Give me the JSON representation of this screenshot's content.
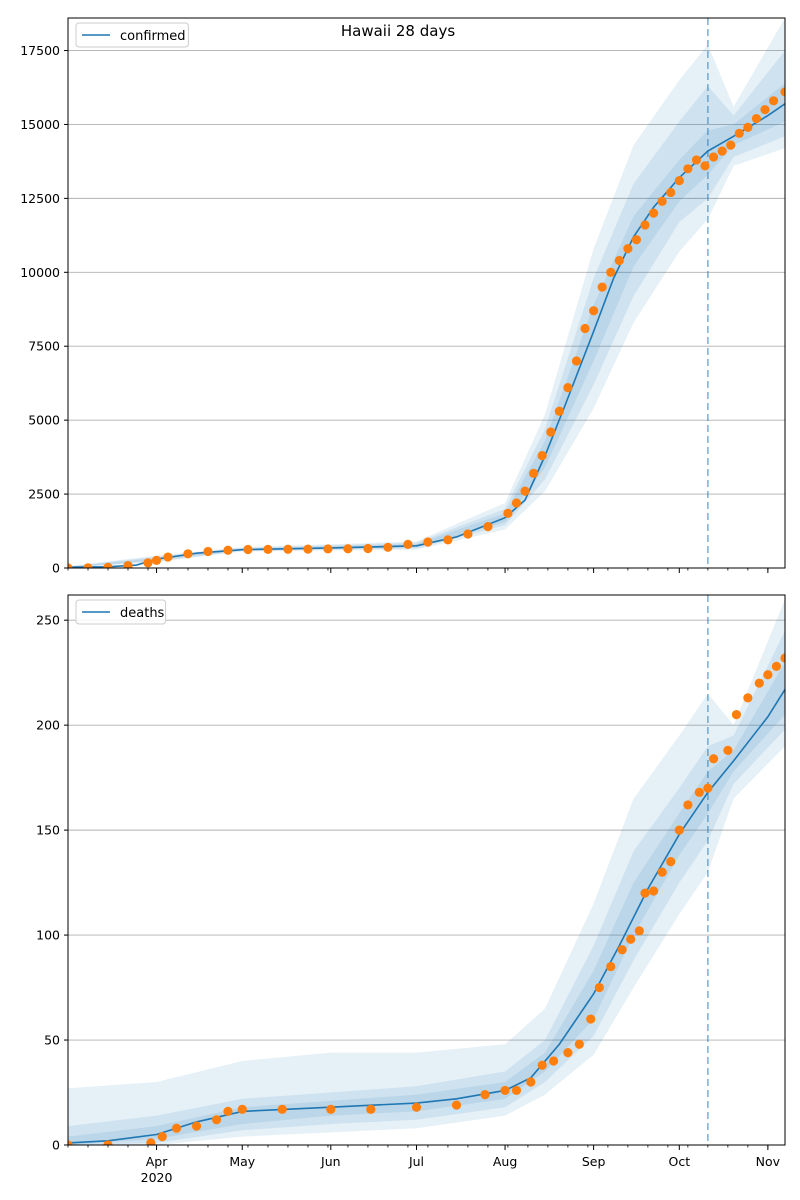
{
  "title": "Hawaii 28 days",
  "colors": {
    "model": "#1f77b4",
    "observed": "#ff7f0e",
    "band": "#1f77b4",
    "grid": "#b0b0b0",
    "forecast_line": "#1f77b4"
  },
  "chart_data": [
    {
      "type": "line",
      "legend": "confirmed",
      "legend_placement": "top-left",
      "grid": "y",
      "x_axis": {
        "range": [
          "2020-03-01",
          "2020-11-07"
        ],
        "major_ticks": [
          {
            "date": "2020-04-01",
            "label": "Apr",
            "sublabel": "2020"
          },
          {
            "date": "2020-05-01",
            "label": "May"
          },
          {
            "date": "2020-06-01",
            "label": "Jun"
          },
          {
            "date": "2020-07-01",
            "label": "Jul"
          },
          {
            "date": "2020-08-01",
            "label": "Aug"
          },
          {
            "date": "2020-09-01",
            "label": "Sep"
          },
          {
            "date": "2020-10-01",
            "label": "Oct"
          },
          {
            "date": "2020-11-01",
            "label": "Nov"
          }
        ]
      },
      "ylim": [
        0,
        18600
      ],
      "yticks": [
        0,
        2500,
        5000,
        7500,
        10000,
        12500,
        15000,
        17500
      ],
      "forecast_start": "2020-10-11",
      "model_median": {
        "x": [
          "2020-03-01",
          "2020-03-15",
          "2020-03-25",
          "2020-04-01",
          "2020-04-15",
          "2020-05-01",
          "2020-06-01",
          "2020-07-01",
          "2020-07-15",
          "2020-08-01",
          "2020-08-08",
          "2020-08-15",
          "2020-08-22",
          "2020-09-01",
          "2020-09-08",
          "2020-09-15",
          "2020-09-22",
          "2020-10-01",
          "2020-10-11",
          "2020-10-20",
          "2020-11-01",
          "2020-11-07"
        ],
        "y": [
          30,
          40,
          100,
          300,
          500,
          620,
          680,
          750,
          1050,
          1700,
          2300,
          3800,
          5500,
          8000,
          9800,
          11200,
          12200,
          13200,
          14100,
          14600,
          15300,
          15700
        ]
      },
      "bands": [
        {
          "x": [
            "2020-03-01",
            "2020-04-01",
            "2020-05-01",
            "2020-07-01",
            "2020-08-01",
            "2020-08-15",
            "2020-09-01",
            "2020-09-15",
            "2020-10-01",
            "2020-10-11",
            "2020-10-20",
            "2020-11-07"
          ],
          "upper": [
            60,
            420,
            700,
            900,
            2200,
            5200,
            10800,
            14300,
            16500,
            17700,
            15600,
            18600
          ],
          "lower": [
            0,
            200,
            560,
            620,
            1300,
            2600,
            5400,
            8300,
            10700,
            11800,
            13600,
            14200
          ]
        },
        {
          "x": [
            "2020-03-01",
            "2020-04-01",
            "2020-05-01",
            "2020-07-01",
            "2020-08-01",
            "2020-08-15",
            "2020-09-01",
            "2020-09-15",
            "2020-10-01",
            "2020-10-11",
            "2020-10-20",
            "2020-11-07"
          ],
          "upper": [
            50,
            380,
            680,
            860,
            2000,
            4700,
            9800,
            13000,
            15100,
            16300,
            15300,
            17500
          ],
          "lower": [
            10,
            230,
            580,
            660,
            1450,
            3000,
            6200,
            9200,
            11700,
            12500,
            13900,
            14600
          ]
        },
        {
          "x": [
            "2020-03-01",
            "2020-04-01",
            "2020-05-01",
            "2020-07-01",
            "2020-08-01",
            "2020-08-15",
            "2020-09-01",
            "2020-09-15",
            "2020-10-01",
            "2020-10-11",
            "2020-10-20",
            "2020-11-07"
          ],
          "upper": [
            40,
            340,
            650,
            810,
            1850,
            4300,
            8900,
            11900,
            13800,
            14800,
            15000,
            16400
          ],
          "lower": [
            20,
            260,
            600,
            700,
            1550,
            3400,
            7000,
            10200,
            12400,
            13300,
            14300,
            15100
          ]
        }
      ],
      "observed": {
        "x": [
          "2020-03-01",
          "2020-03-08",
          "2020-03-15",
          "2020-03-22",
          "2020-03-29",
          "2020-04-01",
          "2020-04-05",
          "2020-04-12",
          "2020-04-19",
          "2020-04-26",
          "2020-05-03",
          "2020-05-10",
          "2020-05-17",
          "2020-05-24",
          "2020-05-31",
          "2020-06-07",
          "2020-06-14",
          "2020-06-21",
          "2020-06-28",
          "2020-07-05",
          "2020-07-12",
          "2020-07-19",
          "2020-07-26",
          "2020-08-02",
          "2020-08-05",
          "2020-08-08",
          "2020-08-11",
          "2020-08-14",
          "2020-08-17",
          "2020-08-20",
          "2020-08-23",
          "2020-08-26",
          "2020-08-29",
          "2020-09-01",
          "2020-09-04",
          "2020-09-07",
          "2020-09-10",
          "2020-09-13",
          "2020-09-16",
          "2020-09-19",
          "2020-09-22",
          "2020-09-25",
          "2020-09-28",
          "2020-10-01",
          "2020-10-04",
          "2020-10-07",
          "2020-10-10",
          "2020-10-13",
          "2020-10-16",
          "2020-10-19",
          "2020-10-22",
          "2020-10-25",
          "2020-10-28",
          "2020-10-31",
          "2020-11-03",
          "2020-11-07"
        ],
        "y": [
          0,
          5,
          20,
          80,
          175,
          260,
          370,
          480,
          560,
          600,
          625,
          630,
          635,
          640,
          645,
          650,
          660,
          700,
          800,
          880,
          950,
          1150,
          1400,
          1850,
          2200,
          2600,
          3200,
          3800,
          4600,
          5300,
          6100,
          7000,
          8100,
          8700,
          9500,
          10000,
          10400,
          10800,
          11100,
          11600,
          12000,
          12400,
          12700,
          13100,
          13500,
          13800,
          13600,
          13900,
          14100,
          14300,
          14700,
          14900,
          15200,
          15500,
          15800,
          16100
        ]
      }
    },
    {
      "type": "line",
      "legend": "deaths",
      "legend_placement": "top-left",
      "grid": "y",
      "x_axis": {
        "range": [
          "2020-03-01",
          "2020-11-07"
        ],
        "major_ticks": [
          {
            "date": "2020-04-01",
            "label": "Apr",
            "sublabel": "2020"
          },
          {
            "date": "2020-05-01",
            "label": "May"
          },
          {
            "date": "2020-06-01",
            "label": "Jun"
          },
          {
            "date": "2020-07-01",
            "label": "Jul"
          },
          {
            "date": "2020-08-01",
            "label": "Aug"
          },
          {
            "date": "2020-09-01",
            "label": "Sep"
          },
          {
            "date": "2020-10-01",
            "label": "Oct"
          },
          {
            "date": "2020-11-01",
            "label": "Nov"
          }
        ]
      },
      "ylim": [
        0,
        262
      ],
      "yticks": [
        0,
        50,
        100,
        150,
        200,
        250
      ],
      "forecast_start": "2020-10-11",
      "model_median": {
        "x": [
          "2020-03-01",
          "2020-03-15",
          "2020-04-01",
          "2020-04-15",
          "2020-05-01",
          "2020-06-01",
          "2020-07-01",
          "2020-07-15",
          "2020-08-01",
          "2020-08-10",
          "2020-08-20",
          "2020-09-01",
          "2020-09-10",
          "2020-09-20",
          "2020-10-01",
          "2020-10-11",
          "2020-10-20",
          "2020-11-01",
          "2020-11-07"
        ],
        "y": [
          1,
          2,
          5,
          11,
          16,
          18,
          20,
          22,
          26,
          32,
          48,
          72,
          95,
          122,
          148,
          168,
          183,
          204,
          217
        ]
      },
      "bands": [
        {
          "x": [
            "2020-03-01",
            "2020-04-01",
            "2020-05-01",
            "2020-06-01",
            "2020-07-01",
            "2020-08-01",
            "2020-08-15",
            "2020-09-01",
            "2020-09-15",
            "2020-10-01",
            "2020-10-11",
            "2020-10-20",
            "2020-11-07"
          ],
          "upper": [
            27,
            30,
            40,
            44,
            44,
            48,
            65,
            115,
            165,
            195,
            215,
            200,
            260
          ],
          "lower": [
            0,
            0,
            4,
            6,
            8,
            14,
            24,
            43,
            75,
            110,
            130,
            165,
            190
          ]
        },
        {
          "x": [
            "2020-03-01",
            "2020-04-01",
            "2020-05-01",
            "2020-06-01",
            "2020-07-01",
            "2020-08-01",
            "2020-08-15",
            "2020-09-01",
            "2020-09-15",
            "2020-10-01",
            "2020-10-11",
            "2020-10-20",
            "2020-11-07"
          ],
          "upper": [
            9,
            14,
            22,
            25,
            28,
            35,
            50,
            95,
            140,
            170,
            190,
            195,
            245
          ],
          "lower": [
            0,
            1,
            7,
            10,
            12,
            18,
            30,
            52,
            88,
            125,
            145,
            172,
            198
          ]
        },
        {
          "x": [
            "2020-03-01",
            "2020-04-01",
            "2020-05-01",
            "2020-06-01",
            "2020-07-01",
            "2020-08-01",
            "2020-08-15",
            "2020-09-01",
            "2020-09-15",
            "2020-10-01",
            "2020-10-11",
            "2020-10-20",
            "2020-11-07"
          ],
          "upper": [
            4,
            9,
            18,
            21,
            24,
            30,
            44,
            83,
            125,
            158,
            178,
            188,
            230
          ],
          "lower": [
            0,
            3,
            10,
            14,
            16,
            22,
            35,
            60,
            100,
            138,
            158,
            178,
            205
          ]
        }
      ],
      "observed": {
        "x": [
          "2020-03-01",
          "2020-03-15",
          "2020-03-30",
          "2020-04-03",
          "2020-04-08",
          "2020-04-15",
          "2020-04-22",
          "2020-04-26",
          "2020-05-01",
          "2020-05-15",
          "2020-06-01",
          "2020-06-15",
          "2020-07-01",
          "2020-07-15",
          "2020-07-25",
          "2020-08-01",
          "2020-08-05",
          "2020-08-10",
          "2020-08-14",
          "2020-08-18",
          "2020-08-23",
          "2020-08-27",
          "2020-08-31",
          "2020-09-03",
          "2020-09-07",
          "2020-09-11",
          "2020-09-14",
          "2020-09-17",
          "2020-09-19",
          "2020-09-22",
          "2020-09-25",
          "2020-09-28",
          "2020-10-01",
          "2020-10-04",
          "2020-10-08",
          "2020-10-11",
          "2020-10-13",
          "2020-10-18",
          "2020-10-21",
          "2020-10-25",
          "2020-10-29",
          "2020-11-01",
          "2020-11-04",
          "2020-11-07"
        ],
        "y": [
          0,
          0,
          1,
          4,
          8,
          9,
          12,
          16,
          17,
          17,
          17,
          17,
          18,
          19,
          24,
          26,
          26,
          30,
          38,
          40,
          44,
          48,
          60,
          75,
          85,
          93,
          98,
          102,
          120,
          121,
          130,
          135,
          150,
          162,
          168,
          170,
          184,
          188,
          205,
          213,
          220,
          224,
          228,
          232
        ]
      }
    }
  ]
}
